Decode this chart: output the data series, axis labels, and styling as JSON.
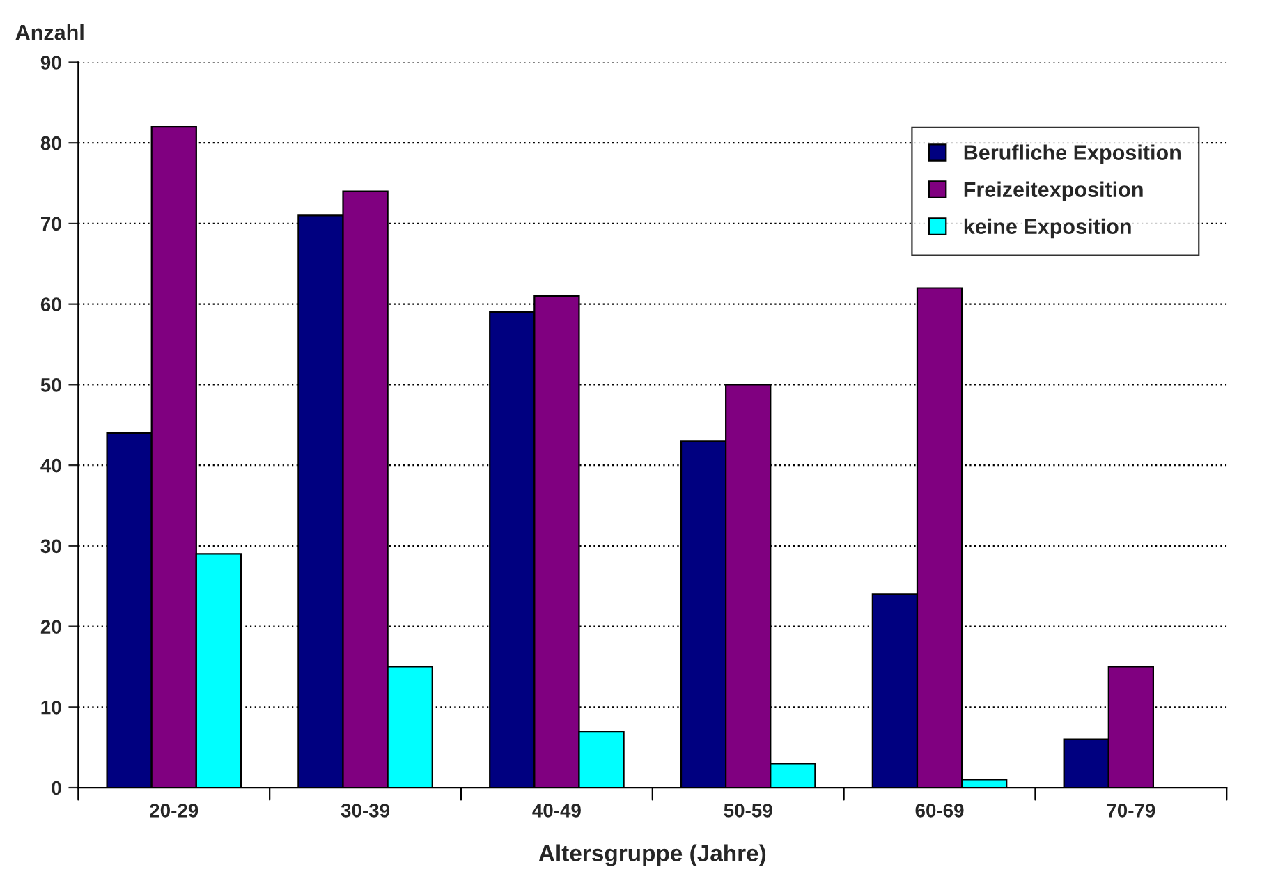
{
  "chart_data": {
    "type": "bar",
    "xlabel": "Altersgruppe (Jahre)",
    "ylabel": "Anzahl",
    "categories": [
      "20-29",
      "30-39",
      "40-49",
      "50-59",
      "60-69",
      "70-79"
    ],
    "series": [
      {
        "name": "Berufliche Exposition",
        "color": "#000080",
        "values": [
          44,
          71,
          59,
          43,
          24,
          6
        ]
      },
      {
        "name": "Freizeitexposition",
        "color": "#800080",
        "values": [
          82,
          74,
          61,
          50,
          62,
          15
        ]
      },
      {
        "name": "keine Exposition",
        "color": "#00ffff",
        "values": [
          29,
          15,
          7,
          3,
          1,
          null
        ]
      }
    ],
    "ylim": [
      0,
      90
    ],
    "yticks": [
      0,
      10,
      20,
      30,
      40,
      50,
      60,
      70,
      80,
      90
    ],
    "grid": "y",
    "legend": "top right"
  }
}
